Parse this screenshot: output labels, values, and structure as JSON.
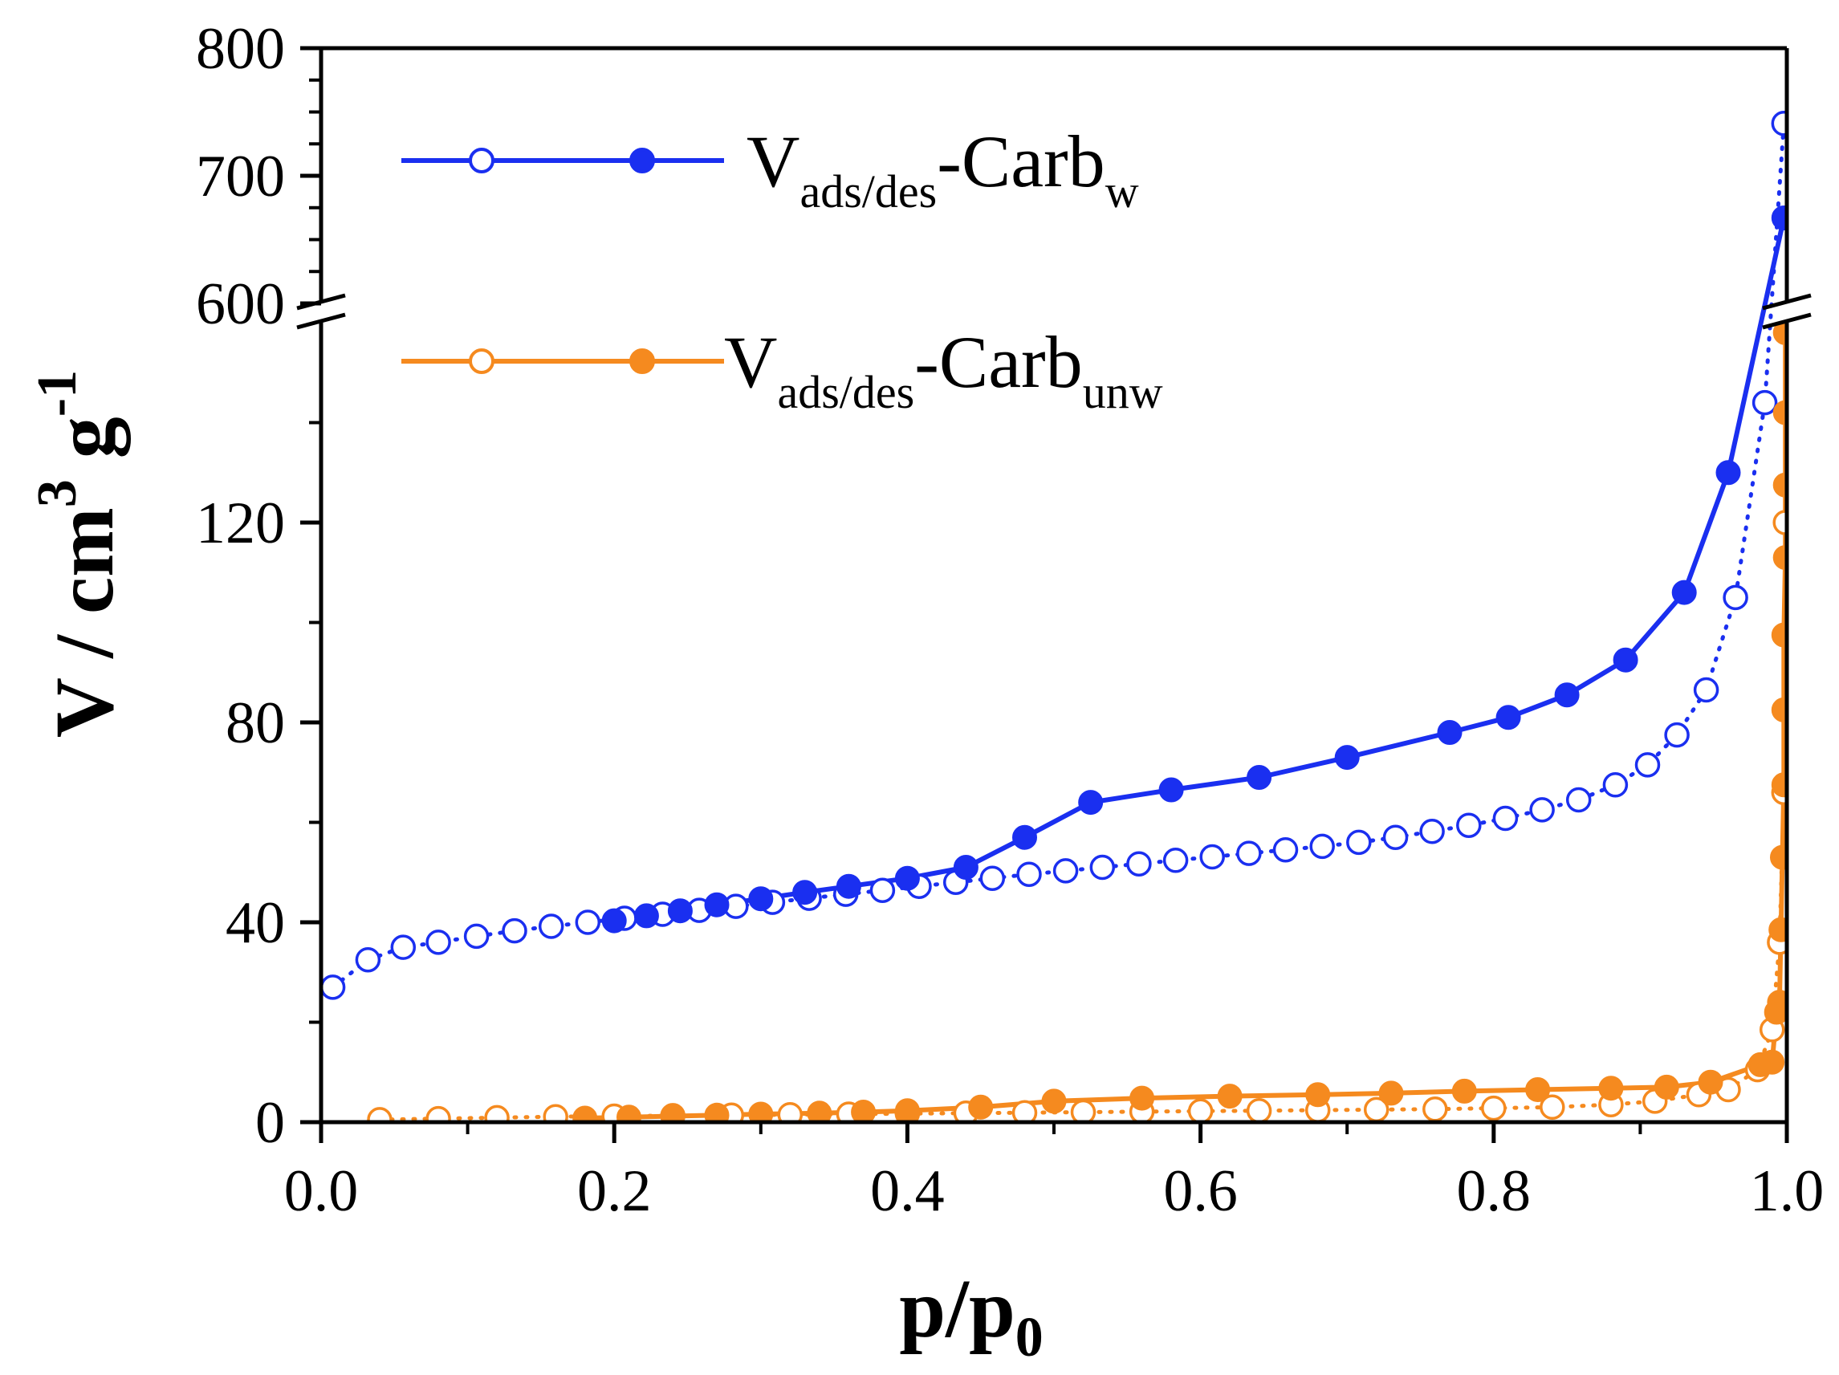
{
  "chart_data": {
    "type": "line",
    "xlabel": "p/p",
    "xlabel_sub": "0",
    "ylabel": "V / cm",
    "ylabel_sup": "3",
    "ylabel_mid": " g",
    "ylabel_sup2": "-1",
    "x_ticks": [
      "0.0",
      "0.2",
      "0.4",
      "0.6",
      "0.8",
      "1.0"
    ],
    "y_ticks_lower": [
      "0",
      "40",
      "80",
      "120"
    ],
    "y_ticks_upper": [
      "600",
      "700",
      "800"
    ],
    "xlim": [
      0,
      1.0
    ],
    "ylim_lower": [
      0,
      160
    ],
    "ylim_upper": [
      600,
      800
    ],
    "axis_break": true,
    "legend_position": "top-left",
    "legend": [
      {
        "main": "V",
        "sub": "ads/des",
        "rest": "-Carb",
        "sub2": "w",
        "color": "#1a2ff0"
      },
      {
        "main": "V",
        "sub": "ads/des",
        "rest": "-Carb",
        "sub2": "unw",
        "color": "#f58a1f"
      }
    ],
    "series": [
      {
        "id": "carb_w_ads",
        "color": "#1a2ff0",
        "marker": "open",
        "line": "dotted",
        "x": [
          0.008,
          0.032,
          0.056,
          0.08,
          0.106,
          0.132,
          0.157,
          0.182,
          0.207,
          0.233,
          0.258,
          0.283,
          0.308,
          0.333,
          0.358,
          0.383,
          0.408,
          0.433,
          0.458,
          0.483,
          0.508,
          0.533,
          0.558,
          0.583,
          0.608,
          0.633,
          0.658,
          0.683,
          0.708,
          0.733,
          0.758,
          0.783,
          0.808,
          0.833,
          0.858,
          0.883,
          0.905,
          0.925,
          0.945,
          0.965,
          0.985,
          0.998
        ],
        "y": [
          27,
          32.5,
          35,
          36,
          37.2,
          38.3,
          39.2,
          40,
          40.8,
          41.6,
          42.4,
          43.2,
          44,
          44.8,
          45.6,
          46.4,
          47.2,
          48,
          48.8,
          49.6,
          50.3,
          51,
          51.7,
          52.4,
          53.1,
          53.8,
          54.5,
          55.2,
          56,
          57,
          58.2,
          59.4,
          60.8,
          62.5,
          64.5,
          67.5,
          71.5,
          77.5,
          86.5,
          105,
          144,
          741
        ]
      },
      {
        "id": "carb_w_des",
        "color": "#1a2ff0",
        "marker": "filled",
        "line": "solid",
        "x": [
          0.998,
          0.96,
          0.93,
          0.89,
          0.85,
          0.81,
          0.77,
          0.7,
          0.64,
          0.58,
          0.525,
          0.48,
          0.44,
          0.4,
          0.36,
          0.33,
          0.3,
          0.27,
          0.245,
          0.222,
          0.2
        ],
        "y": [
          667,
          130,
          106,
          92.5,
          85.5,
          81,
          78,
          73,
          69,
          66.5,
          64,
          57,
          51,
          48.8,
          47.2,
          46,
          44.7,
          43.5,
          42.3,
          41.3,
          40.3
        ]
      },
      {
        "id": "carb_unw_ads",
        "color": "#f58a1f",
        "marker": "open",
        "line": "dotted",
        "x": [
          0.04,
          0.08,
          0.12,
          0.16,
          0.2,
          0.24,
          0.28,
          0.32,
          0.36,
          0.4,
          0.44,
          0.48,
          0.52,
          0.56,
          0.6,
          0.64,
          0.68,
          0.72,
          0.76,
          0.8,
          0.84,
          0.88,
          0.91,
          0.94,
          0.96,
          0.98,
          0.99,
          0.995,
          0.998,
          0.999
        ],
        "y": [
          0.5,
          0.7,
          0.9,
          1.1,
          1.2,
          1.3,
          1.4,
          1.5,
          1.6,
          1.7,
          1.8,
          1.9,
          2,
          2.1,
          2.2,
          2.3,
          2.4,
          2.5,
          2.6,
          2.8,
          3,
          3.5,
          4.2,
          5.5,
          6.5,
          10.5,
          18.5,
          36,
          66,
          120
        ]
      },
      {
        "id": "carb_unw_des",
        "color": "#f58a1f",
        "marker": "filled",
        "line": "solid",
        "x": [
          0.999,
          0.999,
          0.999,
          0.999,
          0.998,
          0.998,
          0.998,
          0.997,
          0.996,
          0.995,
          0.993,
          0.99,
          0.982,
          0.948,
          0.918,
          0.88,
          0.83,
          0.78,
          0.73,
          0.68,
          0.62,
          0.56,
          0.5,
          0.45,
          0.4,
          0.37,
          0.34,
          0.3,
          0.27,
          0.24,
          0.21,
          0.18
        ],
        "y": [
          158,
          142,
          127.5,
          113,
          97.5,
          82.5,
          67.5,
          53,
          38.5,
          24,
          22,
          12,
          11.5,
          8,
          7,
          6.8,
          6.5,
          6.2,
          5.8,
          5.5,
          5.2,
          4.8,
          4.2,
          3,
          2.3,
          2,
          1.8,
          1.6,
          1.4,
          1.2,
          1,
          0.8
        ]
      }
    ]
  }
}
